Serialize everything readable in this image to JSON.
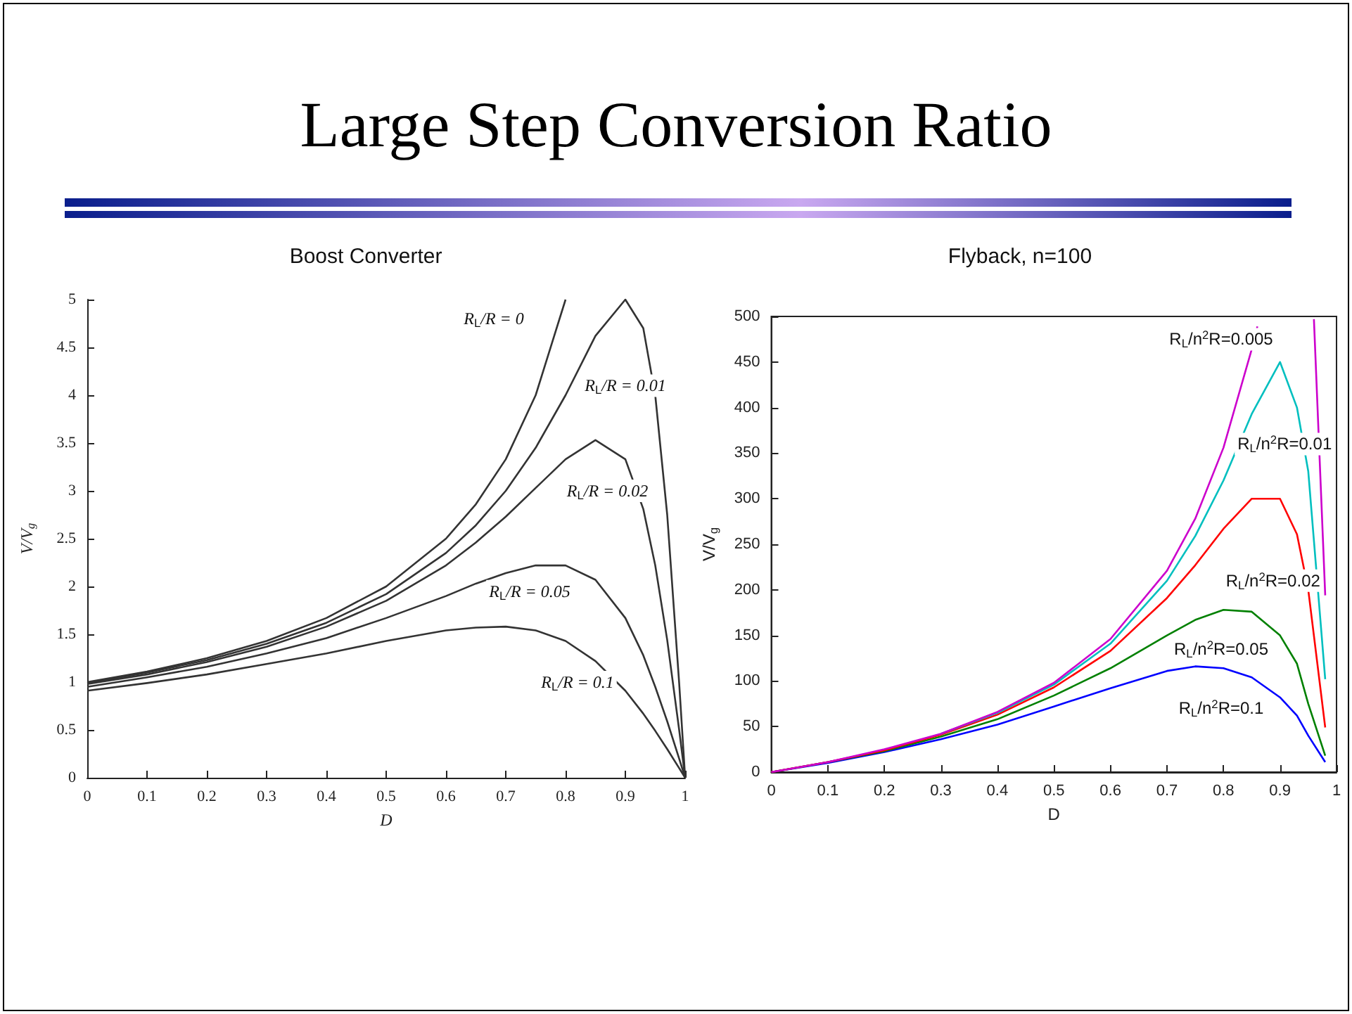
{
  "chart_data": [
    {
      "type": "line",
      "title": "Large Step Conversion Ratio",
      "subtitle": "Boost Converter",
      "xlabel": "D",
      "ylabel": "V/V$_{g}$",
      "x": [
        0,
        0.1,
        0.2,
        0.3,
        0.4,
        0.5,
        0.6,
        0.65,
        0.7,
        0.75,
        0.8,
        0.85,
        0.9,
        0.93,
        0.95,
        0.97,
        0.99,
        1
      ],
      "xlim": [
        0,
        1
      ],
      "xticks": [
        0,
        0.1,
        0.2,
        0.3,
        0.4,
        0.5,
        0.6,
        0.7,
        0.8,
        0.9,
        1
      ],
      "ylim": [
        0,
        5
      ],
      "yticks": [
        0,
        0.5,
        1,
        1.5,
        2,
        2.5,
        3,
        3.5,
        4,
        4.5,
        5
      ],
      "grid": false,
      "marker": "none",
      "line_style": "solid",
      "series": [
        {
          "color": "#333333",
          "x": [
            0,
            0.1,
            0.2,
            0.3,
            0.4,
            0.5,
            0.6,
            0.65,
            0.7,
            0.75,
            0.8
          ],
          "values": [
            1,
            1.11,
            1.25,
            1.43,
            1.67,
            2,
            2.5,
            2.86,
            3.33,
            4,
            5
          ]
        },
        {
          "color": "#333333",
          "values": [
            0.99,
            1.1,
            1.23,
            1.4,
            1.62,
            1.92,
            2.35,
            2.64,
            3.0,
            3.45,
            4.0,
            4.62,
            5.0,
            4.7,
            4.0,
            2.75,
            0.99,
            0
          ]
        },
        {
          "color": "#333333",
          "values": [
            0.98,
            1.08,
            1.21,
            1.37,
            1.58,
            1.85,
            2.22,
            2.46,
            2.73,
            3.03,
            3.33,
            3.53,
            3.33,
            2.81,
            2.22,
            1.44,
            0.5,
            0
          ]
        },
        {
          "color": "#333333",
          "values": [
            0.95,
            1.05,
            1.16,
            1.3,
            1.46,
            1.67,
            1.9,
            2.03,
            2.14,
            2.22,
            2.22,
            2.07,
            1.67,
            1.28,
            0.95,
            0.59,
            0.2,
            0
          ]
        },
        {
          "color": "#333333",
          "values": [
            0.91,
            0.99,
            1.08,
            1.19,
            1.3,
            1.43,
            1.54,
            1.57,
            1.58,
            1.54,
            1.43,
            1.22,
            0.91,
            0.67,
            0.49,
            0.3,
            0.1,
            0
          ]
        }
      ],
      "annotations": [
        "R$_{L}$/R = 0",
        "R$_{L}$/R = 0.01",
        "R$_{L}$/R = 0.02",
        "R$_{L}$/R = 0.05",
        "R$_{L}$/R = 0.1"
      ]
    },
    {
      "type": "line",
      "title": "Flyback, n=100",
      "xlabel": "D",
      "ylabel": "V/V$_{g}$",
      "x": [
        0,
        0.1,
        0.2,
        0.3,
        0.4,
        0.5,
        0.6,
        0.7,
        0.75,
        0.8,
        0.85,
        0.9,
        0.93,
        0.95,
        0.98
      ],
      "xlim": [
        0,
        1
      ],
      "xticks": [
        0,
        0.1,
        0.2,
        0.3,
        0.4,
        0.5,
        0.6,
        0.7,
        0.8,
        0.9,
        1
      ],
      "ylim": [
        0,
        500
      ],
      "yticks": [
        0,
        50,
        100,
        150,
        200,
        250,
        300,
        350,
        400,
        450,
        500
      ],
      "grid": false,
      "marker": "none",
      "line_style": "solid",
      "series": [
        {
          "color": "#cc00cc",
          "x": [
            0,
            0.1,
            0.2,
            0.3,
            0.4,
            0.5,
            0.6,
            0.7,
            0.75,
            0.8,
            0.85,
            0.86,
            0.9,
            0.96,
            0.98
          ],
          "values": [
            0,
            11,
            25,
            42,
            66,
            98,
            146,
            221,
            278,
            356,
            464,
            489,
            null,
            497,
            194
          ]
        },
        {
          "color": "#00bfbf",
          "values": [
            null,
            null,
            null,
            42,
            65,
            96,
            141,
            210,
            259,
            320,
            393,
            450,
            400,
            330,
            102
          ]
        },
        {
          "color": "#ff0000",
          "values": [
            0,
            11,
            24,
            41,
            63,
            93,
            133,
            191,
            227,
            267,
            300,
            300,
            261,
            200,
            49
          ]
        },
        {
          "color": "#008000",
          "values": [
            0,
            11,
            23,
            39,
            58,
            84,
            114,
            150,
            167,
            178,
            176,
            150,
            119,
            75,
            18
          ]
        },
        {
          "color": "#0000ff",
          "values": [
            0,
            10,
            22,
            36,
            52,
            72,
            92,
            111,
            116,
            114,
            104,
            82,
            62,
            40,
            11
          ]
        }
      ],
      "annotations": [
        "R$_{L}$/n$^{2}$R=0.005",
        "R$_{L}$/n$^{2}$R=0.01",
        "R$_{L}$/n$^{2}$R=0.02",
        "R$_{L}$/n$^{2}$R=0.05",
        "R$_{L}$/n$^{2}$R=0.1"
      ]
    }
  ]
}
